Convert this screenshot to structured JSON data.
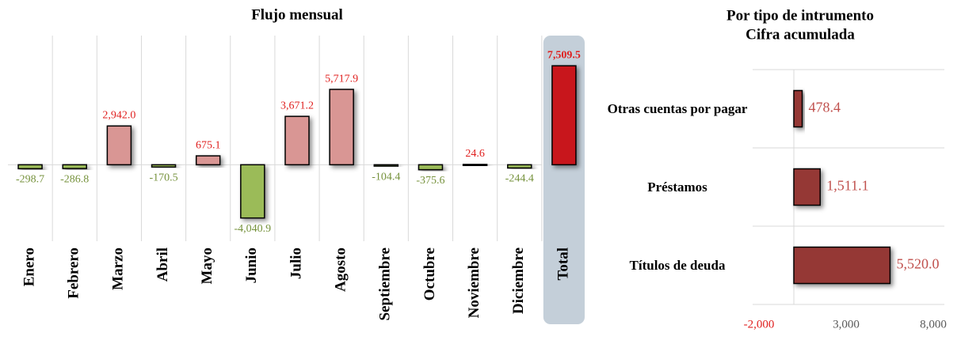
{
  "chart_data": [
    {
      "type": "bar",
      "title": "Flujo mensual",
      "categories": [
        "Enero",
        "Febrero",
        "Marzo",
        "Abril",
        "Mayo",
        "Junio",
        "Julio",
        "Agosto",
        "Septiembre",
        "Octubre",
        "Noviembre",
        "Diciembre",
        "Total"
      ],
      "values": [
        -298.7,
        -286.8,
        2942.0,
        -170.5,
        675.1,
        -4040.9,
        3671.2,
        5717.9,
        -104.4,
        -375.6,
        24.6,
        -244.4,
        7509.5
      ],
      "value_labels": [
        "-298.7",
        "-286.8",
        "2,942.0",
        "-170.5",
        "675.1",
        "-4,040.9",
        "3,671.2",
        "5,717.9",
        "-104.4",
        "-375.6",
        "24.6",
        "-244.4",
        "7,509.5"
      ],
      "colors": [
        "#9bbb59",
        "#9bbb59",
        "#d99694",
        "#9bbb59",
        "#d99694",
        "#9bbb59",
        "#d99694",
        "#d99694",
        "#9bbb59",
        "#9bbb59",
        "#d99694",
        "#9bbb59",
        "#c8141e"
      ],
      "ylim": [
        -5800,
        9800
      ]
    },
    {
      "type": "hbar",
      "title": "Por tipo de intrumento",
      "subtitle": "Cifra acumulada",
      "categories": [
        "Otras cuentas por pagar",
        "Préstamos",
        "Títulos de deuda"
      ],
      "values": [
        478.4,
        1511.1,
        5520.0
      ],
      "value_labels": [
        "478.4",
        "1,511.1",
        "5,520.0"
      ],
      "color": "#953735",
      "xlim": [
        -2000,
        8000
      ],
      "xticks": [
        {
          "value": -2000,
          "label": "-2,000"
        },
        {
          "value": 3000,
          "label": "3,000"
        },
        {
          "value": 8000,
          "label": "8,000"
        }
      ]
    }
  ]
}
